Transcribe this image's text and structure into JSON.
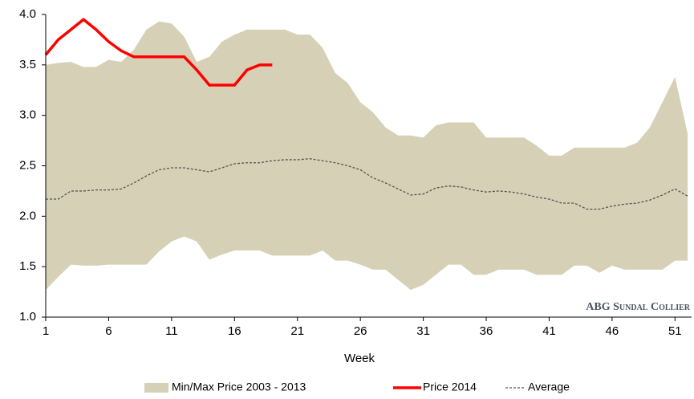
{
  "chart_data": {
    "type": "line",
    "xlabel": "Week",
    "watermark": "ABG Sundal Collier",
    "x": [
      1,
      2,
      3,
      4,
      5,
      6,
      7,
      8,
      9,
      10,
      11,
      12,
      13,
      14,
      15,
      16,
      17,
      18,
      19,
      20,
      21,
      22,
      23,
      24,
      25,
      26,
      27,
      28,
      29,
      30,
      31,
      32,
      33,
      34,
      35,
      36,
      37,
      38,
      39,
      40,
      41,
      42,
      43,
      44,
      45,
      46,
      47,
      48,
      49,
      50,
      51,
      52
    ],
    "xlim": [
      1,
      52
    ],
    "xticks": [
      1,
      6,
      11,
      16,
      21,
      26,
      31,
      36,
      41,
      46,
      51
    ],
    "ylim": [
      1,
      4
    ],
    "yticks": [
      {
        "value": 1,
        "label": "1.0"
      },
      1.5,
      {
        "value": 2,
        "label": "2.0"
      },
      2.5,
      {
        "value": 3,
        "label": "3.0"
      },
      3.5,
      {
        "value": 4,
        "label": "4.0"
      }
    ],
    "grid": false,
    "legend": "bottom",
    "series": [
      {
        "name": "Min/Max Price 2003 - 2013",
        "type": "band",
        "color": "#d6d0b6",
        "high": [
          3.5,
          3.52,
          3.53,
          3.48,
          3.48,
          3.55,
          3.53,
          3.65,
          3.85,
          3.93,
          3.91,
          3.78,
          3.53,
          3.58,
          3.73,
          3.8,
          3.85,
          3.85,
          3.85,
          3.85,
          3.8,
          3.8,
          3.67,
          3.42,
          3.32,
          3.13,
          3.03,
          2.88,
          2.8,
          2.8,
          2.78,
          2.9,
          2.93,
          2.93,
          2.93,
          2.78,
          2.78,
          2.78,
          2.78,
          2.7,
          2.6,
          2.6,
          2.68,
          2.68,
          2.68,
          2.68,
          2.68,
          2.73,
          2.88,
          3.13,
          3.38,
          2.82
        ],
        "low": [
          1.27,
          1.4,
          1.52,
          1.51,
          1.51,
          1.52,
          1.52,
          1.52,
          1.52,
          1.65,
          1.75,
          1.8,
          1.75,
          1.57,
          1.62,
          1.66,
          1.66,
          1.66,
          1.61,
          1.61,
          1.61,
          1.61,
          1.66,
          1.56,
          1.56,
          1.52,
          1.47,
          1.47,
          1.37,
          1.27,
          1.32,
          1.42,
          1.52,
          1.52,
          1.42,
          1.42,
          1.47,
          1.47,
          1.47,
          1.42,
          1.42,
          1.42,
          1.51,
          1.51,
          1.44,
          1.51,
          1.47,
          1.47,
          1.47,
          1.47,
          1.56,
          1.56
        ]
      },
      {
        "name": "Price 2014",
        "type": "line",
        "color": "#ff0000",
        "values": [
          3.6,
          3.75,
          3.85,
          3.95,
          3.85,
          3.73,
          3.64,
          3.58,
          3.58,
          3.58,
          3.58,
          3.58,
          3.45,
          3.3,
          3.3,
          3.3,
          3.45,
          3.5,
          3.5,
          null,
          null,
          null,
          null,
          null,
          null,
          null,
          null,
          null,
          null,
          null,
          null,
          null,
          null,
          null,
          null,
          null,
          null,
          null,
          null,
          null,
          null,
          null,
          null,
          null,
          null,
          null,
          null,
          null,
          null,
          null,
          null,
          null
        ]
      },
      {
        "name": "Average",
        "type": "dashed",
        "color": "#555555",
        "values": [
          2.17,
          2.17,
          2.25,
          2.25,
          2.26,
          2.26,
          2.27,
          2.33,
          2.4,
          2.46,
          2.48,
          2.48,
          2.46,
          2.44,
          2.48,
          2.52,
          2.53,
          2.53,
          2.55,
          2.56,
          2.56,
          2.57,
          2.55,
          2.53,
          2.5,
          2.46,
          2.38,
          2.33,
          2.27,
          2.21,
          2.22,
          2.28,
          2.3,
          2.29,
          2.26,
          2.24,
          2.25,
          2.24,
          2.22,
          2.19,
          2.17,
          2.13,
          2.13,
          2.07,
          2.07,
          2.1,
          2.12,
          2.13,
          2.16,
          2.21,
          2.27,
          2.2
        ]
      }
    ]
  }
}
